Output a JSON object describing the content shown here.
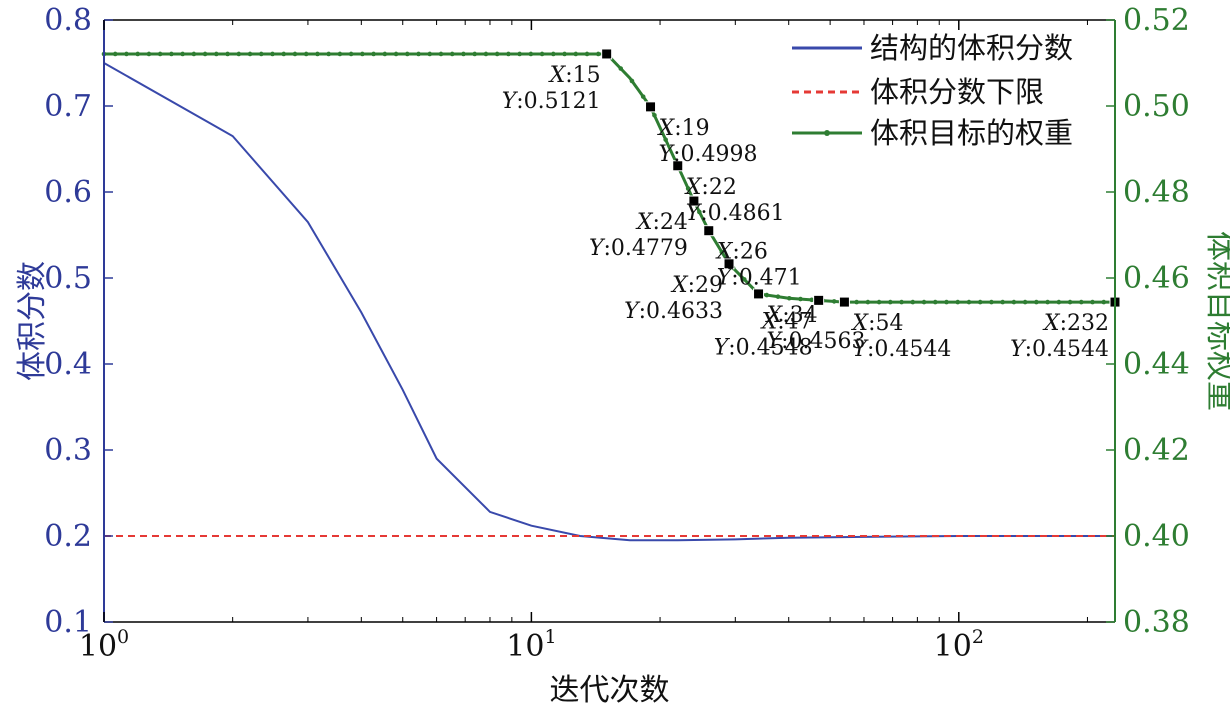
{
  "chart_data": {
    "type": "line",
    "xscale": "log",
    "xlim": [
      1,
      232
    ],
    "xlabel": "迭代次数",
    "x_ticks": [
      {
        "base": "10",
        "exp": "0",
        "value": 1
      },
      {
        "base": "10",
        "exp": "1",
        "value": 10
      },
      {
        "base": "10",
        "exp": "2",
        "value": 100
      }
    ],
    "y_left": {
      "label": "体积分数",
      "ylim": [
        0.1,
        0.8
      ],
      "ticks": [
        "0.1",
        "0.2",
        "0.3",
        "0.4",
        "0.5",
        "0.6",
        "0.7",
        "0.8"
      ],
      "color": "#2e3a98"
    },
    "y_right": {
      "label": "体积目标权重",
      "ylim": [
        0.38,
        0.52
      ],
      "ticks": [
        "0.38",
        "0.40",
        "0.42",
        "0.44",
        "0.46",
        "0.48",
        "0.50",
        "0.52"
      ],
      "color": "#2e7d32"
    },
    "legend_position": "top-right",
    "series": [
      {
        "name": "结构的体积分数",
        "axis": "left",
        "color": "#3949ab",
        "style": "solid",
        "x": [
          1,
          2,
          3,
          4,
          5,
          6,
          8,
          10,
          13,
          17,
          22,
          30,
          40,
          60,
          100,
          232
        ],
        "y": [
          0.75,
          0.665,
          0.565,
          0.46,
          0.37,
          0.29,
          0.228,
          0.212,
          0.2,
          0.195,
          0.195,
          0.196,
          0.198,
          0.199,
          0.2,
          0.2
        ]
      },
      {
        "name": "体积分数下限",
        "axis": "left",
        "color": "#e53935",
        "style": "dashed",
        "x": [
          1,
          232
        ],
        "y": [
          0.2,
          0.2
        ]
      },
      {
        "name": "体积目标的权重",
        "axis": "right",
        "color": "#2e7d32",
        "style": "solid-dots",
        "x": [
          1,
          15,
          17,
          19,
          22,
          24,
          26,
          29,
          34,
          40,
          47,
          54,
          80,
          120,
          232
        ],
        "y": [
          0.5121,
          0.5121,
          0.5065,
          0.4998,
          0.4861,
          0.4779,
          0.471,
          0.4633,
          0.4563,
          0.4553,
          0.4548,
          0.4544,
          0.4544,
          0.4544,
          0.4544
        ]
      }
    ],
    "annotations": [
      {
        "x": 15,
        "y": 0.5121,
        "xl": "X",
        "xv": ":15",
        "yl": "Y",
        "yv": ":0.5121",
        "anchor": "end"
      },
      {
        "x": 19,
        "y": 0.4998,
        "xl": "X",
        "xv": ":19",
        "yl": "Y",
        "yv": ":0.4998",
        "anchor": "start"
      },
      {
        "x": 22,
        "y": 0.4861,
        "xl": "X",
        "xv": ":22",
        "yl": "Y",
        "yv": ":0.4861",
        "anchor": "start"
      },
      {
        "x": 24,
        "y": 0.4779,
        "xl": "X",
        "xv": ":24",
        "yl": "Y",
        "yv": ":0.4779",
        "anchor": "end"
      },
      {
        "x": 26,
        "y": 0.471,
        "xl": "X",
        "xv": ":26",
        "yl": "Y",
        "yv": ":0.471",
        "anchor": "start"
      },
      {
        "x": 29,
        "y": 0.4633,
        "xl": "X",
        "xv": ":29",
        "yl": "Y",
        "yv": ":0.4633",
        "anchor": "end"
      },
      {
        "x": 34,
        "y": 0.4563,
        "xl": "X",
        "xv": ":34",
        "yl": "Y",
        "yv": ":0.4563",
        "anchor": "start"
      },
      {
        "x": 47,
        "y": 0.4548,
        "xl": "X",
        "xv": ":47",
        "yl": "Y",
        "yv": ":0.4548",
        "anchor": "end"
      },
      {
        "x": 54,
        "y": 0.4544,
        "xl": "X",
        "xv": ":54",
        "yl": "Y",
        "yv": ":0.4544",
        "anchor": "start"
      },
      {
        "x": 232,
        "y": 0.4544,
        "xl": "X",
        "xv": ":232",
        "yl": "Y",
        "yv": ":0.4544",
        "anchor": "end"
      }
    ]
  }
}
